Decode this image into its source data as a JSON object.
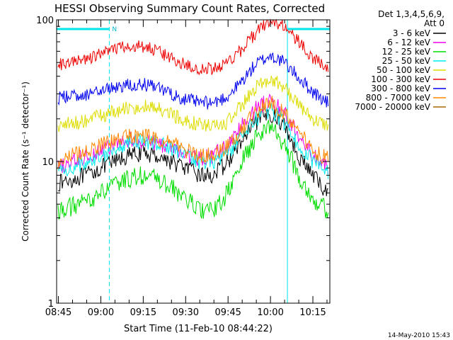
{
  "chart_data": {
    "type": "line",
    "title": "HESSI Observing Summary Count Rates, Corrected",
    "xlabel": "Start Time (11-Feb-10 08:44:22)",
    "ylabel": "Corrected Count Rate (s⁻¹ detector⁻¹)",
    "footer": "14-May-2010 15:43",
    "y_scale": "log",
    "ylim": [
      1,
      100
    ],
    "y_ticks": [
      1,
      10,
      100
    ],
    "x_range": [
      "08:44:22",
      "10:21:00"
    ],
    "x_ticks": [
      "08:45",
      "09:00",
      "09:15",
      "09:30",
      "09:45",
      "10:00",
      "10:15"
    ],
    "legend": {
      "position": "top-right outside",
      "header_line1": "Det 1,3,4,5,6,9,",
      "header_line2": "Att 0"
    },
    "annotations": {
      "n_flag_label": "N",
      "n_flag_intervals": [
        [
          "08:44:22",
          "09:03:00"
        ],
        [
          "10:06:00",
          "10:21:00"
        ]
      ],
      "vertical_markers_solid": [
        "08:44:22",
        "10:06:00"
      ],
      "vertical_markers_dashed": [
        "09:03:00",
        "10:21:00"
      ]
    },
    "x_times": [
      "08:45",
      "08:50",
      "08:55",
      "09:00",
      "09:05",
      "09:10",
      "09:15",
      "09:20",
      "09:25",
      "09:30",
      "09:35",
      "09:40",
      "09:45",
      "09:50",
      "09:55",
      "10:00",
      "10:05",
      "10:10",
      "10:15",
      "10:20"
    ],
    "series": [
      {
        "name": "3 - 6 keV",
        "color": "#000000",
        "values": [
          7,
          7.5,
          8,
          9,
          10,
          11,
          11.5,
          11,
          10,
          9,
          8,
          8,
          10,
          14,
          19,
          22,
          18,
          11,
          8,
          6
        ]
      },
      {
        "name": "6 - 12 keV",
        "color": "#ee00ee",
        "values": [
          9,
          10,
          11,
          12,
          13,
          14,
          14,
          13.5,
          12.5,
          11,
          10.5,
          11,
          13,
          18,
          24,
          27,
          22,
          15,
          11,
          9
        ]
      },
      {
        "name": "12 - 25 keV",
        "color": "#00dd00",
        "values": [
          4.5,
          4.8,
          5.2,
          6,
          6.8,
          7.6,
          8,
          7.5,
          6.5,
          5.5,
          4.5,
          4.5,
          6,
          10,
          15,
          18,
          13,
          8,
          5.5,
          4.5
        ]
      },
      {
        "name": "25 - 50 keV",
        "color": "#00eeee",
        "values": [
          8.5,
          9,
          10,
          11,
          12.5,
          13.5,
          14,
          13.5,
          12.5,
          11,
          10,
          10,
          11.5,
          15,
          20,
          23,
          19,
          13,
          10,
          8.5
        ]
      },
      {
        "name": "50 - 100 keV",
        "color": "#dddd00",
        "values": [
          18,
          18.5,
          19.5,
          21,
          22.5,
          24,
          24.5,
          23.5,
          21.5,
          19.5,
          18,
          17.5,
          19,
          25,
          34,
          39,
          33,
          25,
          20,
          18
        ]
      },
      {
        "name": "100 - 300 keV",
        "color": "#ee0000",
        "values": [
          48,
          50,
          53,
          57,
          62,
          66,
          65,
          60,
          54,
          48,
          45,
          45,
          50,
          62,
          82,
          98,
          90,
          70,
          54,
          45
        ]
      },
      {
        "name": "300 - 800 keV",
        "color": "#0000ee",
        "values": [
          28,
          29,
          30,
          31.5,
          33.5,
          35,
          35,
          33,
          30,
          27.5,
          26,
          26,
          29,
          37,
          49,
          56,
          50,
          39,
          31,
          26
        ]
      },
      {
        "name": "800 - 7000 keV",
        "color": "#ff8800",
        "values": [
          10,
          11,
          12,
          13,
          14,
          15,
          15,
          14.5,
          13.5,
          12,
          11,
          11,
          13,
          17,
          23,
          26,
          22,
          16,
          12,
          10.5
        ]
      },
      {
        "name": "7000 - 20000 keV",
        "color": "#aa6600",
        "values": []
      }
    ]
  }
}
